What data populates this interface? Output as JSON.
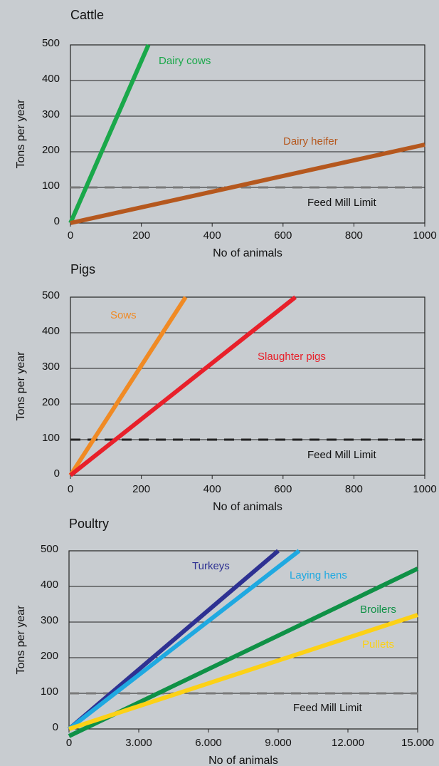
{
  "chart_data": [
    {
      "type": "line",
      "title": "Cattle",
      "xlabel": "No of animals",
      "ylabel": "Tons per year",
      "xlim": [
        0,
        1000
      ],
      "ylim": [
        0,
        500
      ],
      "x_ticks": [
        "0",
        "200",
        "400",
        "600",
        "800",
        "1000"
      ],
      "y_ticks": [
        "0",
        "100",
        "200",
        "300",
        "400",
        "500"
      ],
      "grid": "horizontal",
      "series": [
        {
          "name": "Dairy cows",
          "color": "#1aa84a",
          "x": [
            0,
            220
          ],
          "y": [
            0,
            500
          ]
        },
        {
          "name": "Dairy heifer",
          "color": "#b5581e",
          "x": [
            0,
            1000
          ],
          "y": [
            0,
            220
          ]
        }
      ],
      "reference_line": {
        "label": "Feed Mill Limit",
        "y": 100,
        "color": "#7a7a7a"
      }
    },
    {
      "type": "line",
      "title": "Pigs",
      "xlabel": "No of animals",
      "ylabel": "Tons per year",
      "xlim": [
        0,
        1000
      ],
      "ylim": [
        0,
        500
      ],
      "x_ticks": [
        "0",
        "200",
        "400",
        "600",
        "800",
        "1000"
      ],
      "y_ticks": [
        "0",
        "100",
        "200",
        "300",
        "400",
        "500"
      ],
      "grid": "horizontal",
      "series": [
        {
          "name": "Sows",
          "color": "#f08a24",
          "x": [
            0,
            325
          ],
          "y": [
            0,
            500
          ]
        },
        {
          "name": "Slaughter pigs",
          "color": "#e8202a",
          "x": [
            0,
            635
          ],
          "y": [
            0,
            500
          ]
        }
      ],
      "reference_line": {
        "label": "Feed Mill Limit",
        "y": 100,
        "color": "#222222"
      }
    },
    {
      "type": "line",
      "title": "Poultry",
      "xlabel": "No of animals",
      "ylabel": "Tons per year",
      "xlim": [
        0,
        15000
      ],
      "ylim": [
        0,
        500
      ],
      "x_ticks": [
        "0",
        "3.000",
        "6.000",
        "9.000",
        "12.000",
        "15.000"
      ],
      "y_ticks": [
        "0",
        "100",
        "200",
        "300",
        "400",
        "500"
      ],
      "grid": "horizontal",
      "series": [
        {
          "name": "Turkeys",
          "color": "#2e3192",
          "x": [
            0,
            9000
          ],
          "y": [
            0,
            500
          ]
        },
        {
          "name": "Laying hens",
          "color": "#1fa9e1",
          "x": [
            0,
            9900
          ],
          "y": [
            0,
            500
          ]
        },
        {
          "name": "Broilers",
          "color": "#0f9146",
          "x": [
            0,
            15000
          ],
          "y": [
            -20,
            450
          ]
        },
        {
          "name": "Pullets",
          "color": "#fcd116",
          "x": [
            0,
            15000
          ],
          "y": [
            0,
            320
          ]
        }
      ],
      "reference_line": {
        "label": "Feed Mill Limit",
        "y": 100,
        "color": "#7a7a7a"
      }
    }
  ]
}
